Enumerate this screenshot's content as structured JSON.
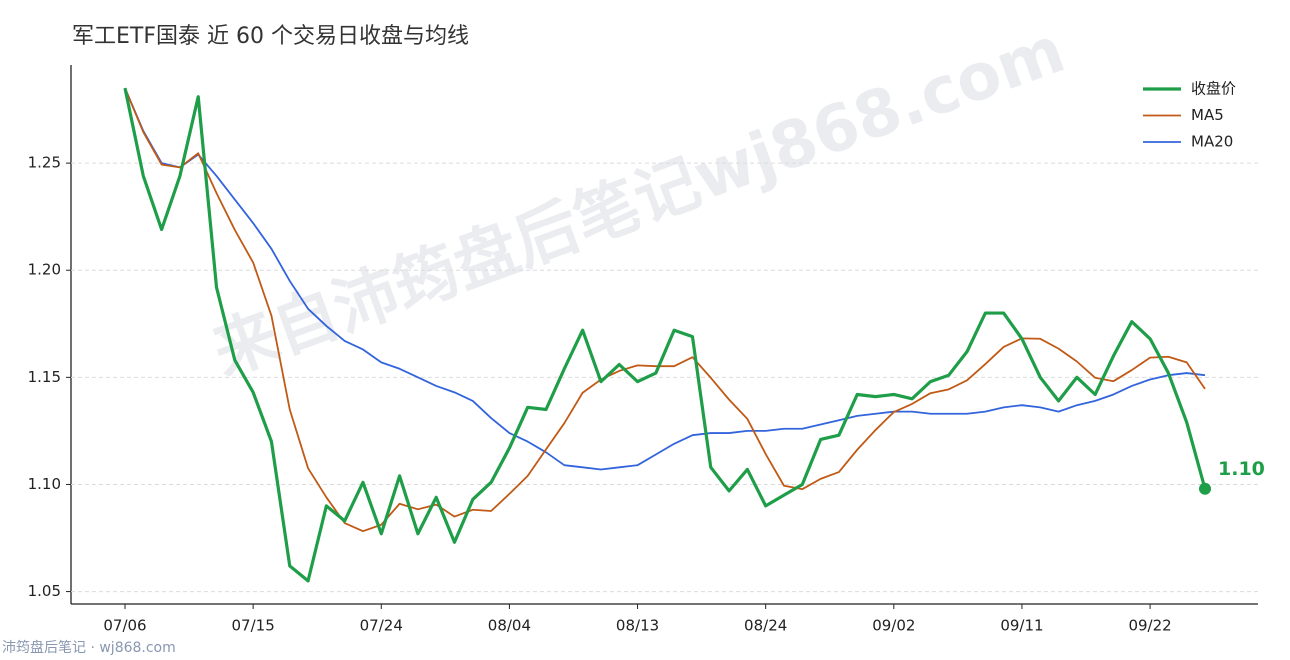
{
  "chart_data": {
    "type": "line",
    "title": "军工ETF国泰 近 60 个交易日收盘与均线",
    "watermark": "来自沛筠盘后笔记wj868.com",
    "footer": "沛筠盘后笔记 · wj868.com",
    "categories": [
      "07/06",
      null,
      null,
      null,
      null,
      null,
      null,
      "07/15",
      null,
      null,
      null,
      null,
      null,
      null,
      "07/24",
      null,
      null,
      null,
      null,
      null,
      null,
      "08/04",
      null,
      null,
      null,
      null,
      null,
      null,
      "08/13",
      null,
      null,
      null,
      null,
      null,
      null,
      "08/24",
      null,
      null,
      null,
      null,
      null,
      null,
      "09/02",
      null,
      null,
      null,
      null,
      null,
      null,
      "09/11",
      null,
      null,
      null,
      null,
      null,
      null,
      "09/22",
      null,
      null,
      null
    ],
    "series": [
      {
        "name": "收盘价",
        "color": "#1e9e48",
        "width": 3.2,
        "values": [
          1.285,
          1.244,
          1.219,
          1.244,
          1.281,
          1.192,
          1.158,
          1.143,
          1.12,
          1.062,
          1.055,
          1.09,
          1.083,
          1.101,
          1.077,
          1.104,
          1.077,
          1.094,
          1.073,
          1.093,
          1.101,
          1.117,
          1.136,
          1.135,
          1.154,
          1.172,
          1.148,
          1.156,
          1.148,
          1.152,
          1.172,
          1.169,
          1.108,
          1.097,
          1.107,
          1.09,
          1.095,
          1.1,
          1.121,
          1.123,
          1.142,
          1.141,
          1.142,
          1.14,
          1.148,
          1.151,
          1.162,
          1.18,
          1.18,
          1.168,
          1.15,
          1.139,
          1.15,
          1.142,
          1.16,
          1.176,
          1.168,
          1.152,
          1.129,
          1.098
        ],
        "value_labels": [
          null,
          null,
          null,
          null,
          null,
          null,
          null,
          null,
          null,
          null,
          null,
          null,
          null,
          null,
          null,
          null,
          null,
          null,
          null,
          null,
          null,
          null,
          null,
          null,
          null,
          null,
          null,
          null,
          null,
          null,
          null,
          null,
          null,
          null,
          null,
          null,
          null,
          null,
          null,
          null,
          null,
          null,
          null,
          null,
          null,
          null,
          null,
          null,
          null,
          null,
          null,
          null,
          null,
          null,
          null,
          null,
          null,
          null,
          null,
          "1.10"
        ]
      },
      {
        "name": "MA5",
        "color": "#c05a16",
        "width": 1.8,
        "values": [
          1.285,
          1.2645,
          1.2493,
          1.248,
          1.2546,
          1.236,
          1.2188,
          1.2036,
          1.1788,
          1.135,
          1.1076,
          1.094,
          1.082,
          1.0782,
          1.0812,
          1.091,
          1.0884,
          1.0906,
          1.085,
          1.0882,
          1.0876,
          1.0956,
          1.104,
          1.1164,
          1.1286,
          1.1428,
          1.149,
          1.153,
          1.1556,
          1.1552,
          1.1552,
          1.1594,
          1.1498,
          1.1396,
          1.1306,
          1.1142,
          1.0994,
          1.0978,
          1.1026,
          1.1058,
          1.1162,
          1.1254,
          1.1338,
          1.1376,
          1.1426,
          1.1444,
          1.1486,
          1.1562,
          1.1642,
          1.1682,
          1.168,
          1.1634,
          1.1574,
          1.1498,
          1.1482,
          1.1534,
          1.1592,
          1.1596,
          1.157,
          1.1446
        ]
      },
      {
        "name": "MA20",
        "color": "#3264dc",
        "width": 1.8,
        "values": [
          1.285,
          1.265,
          1.25,
          1.248,
          1.254,
          1.244,
          1.233,
          1.222,
          1.21,
          1.195,
          1.182,
          1.174,
          1.167,
          1.163,
          1.157,
          1.154,
          1.15,
          1.146,
          1.143,
          1.139,
          1.131,
          1.124,
          1.12,
          1.115,
          1.109,
          1.108,
          1.107,
          1.108,
          1.109,
          1.114,
          1.119,
          1.123,
          1.124,
          1.124,
          1.125,
          1.125,
          1.126,
          1.126,
          1.128,
          1.13,
          1.132,
          1.133,
          1.134,
          1.134,
          1.133,
          1.133,
          1.133,
          1.134,
          1.136,
          1.137,
          1.136,
          1.134,
          1.137,
          1.139,
          1.142,
          1.146,
          1.149,
          1.151,
          1.152,
          1.151
        ]
      }
    ],
    "ylim": [
      1.0442,
      1.2958
    ],
    "yticks": [
      1.05,
      {
        "value": 1.1,
        "label": "1.10"
      },
      1.15,
      {
        "value": 1.2,
        "label": "1.20"
      },
      1.25
    ],
    "grid": true,
    "legend": "upper right"
  }
}
